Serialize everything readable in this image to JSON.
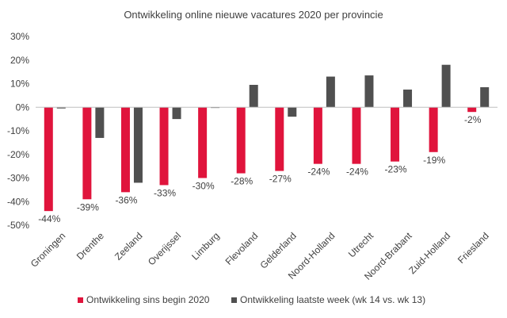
{
  "chart_data": {
    "type": "bar",
    "title": "Ontwikkeling online nieuwe vacatures 2020 per provincie",
    "categories": [
      "Groningen",
      "Drenthe",
      "Zeeland",
      "Overijssel",
      "Limburg",
      "Flevoland",
      "Gelderland",
      "Noord-Holland",
      "Utrecht",
      "Noord-Brabant",
      "Zuid-Holland",
      "Friesland"
    ],
    "series": [
      {
        "name": "Ontwikkeling sins begin 2020",
        "color": "#e0143c",
        "values": [
          -44,
          -39,
          -36,
          -33,
          -30,
          -28,
          -27,
          -24,
          -24,
          -23,
          -19,
          -2
        ],
        "labels": [
          "-44%",
          "-39%",
          "-36%",
          "-33%",
          "-30%",
          "-28%",
          "-27%",
          "-24%",
          "-24%",
          "-23%",
          "-19%",
          "-2%"
        ]
      },
      {
        "name": "Ontwikkeling laatste week (wk 14 vs. wk 13)",
        "color": "#505050",
        "values": [
          -0.5,
          -13,
          -32,
          -5,
          -0.3,
          9.5,
          -4,
          13,
          13.5,
          7.5,
          18,
          8.5
        ]
      }
    ],
    "ylim": [
      -50,
      30
    ],
    "yticks": [
      30,
      20,
      10,
      0,
      -10,
      -20,
      -30,
      -40,
      -50
    ],
    "ytick_labels": [
      "30%",
      "20%",
      "10%",
      "0%",
      "-10%",
      "-20%",
      "-30%",
      "-40%",
      "-50%"
    ],
    "grid": false,
    "legend_position": "bottom"
  }
}
